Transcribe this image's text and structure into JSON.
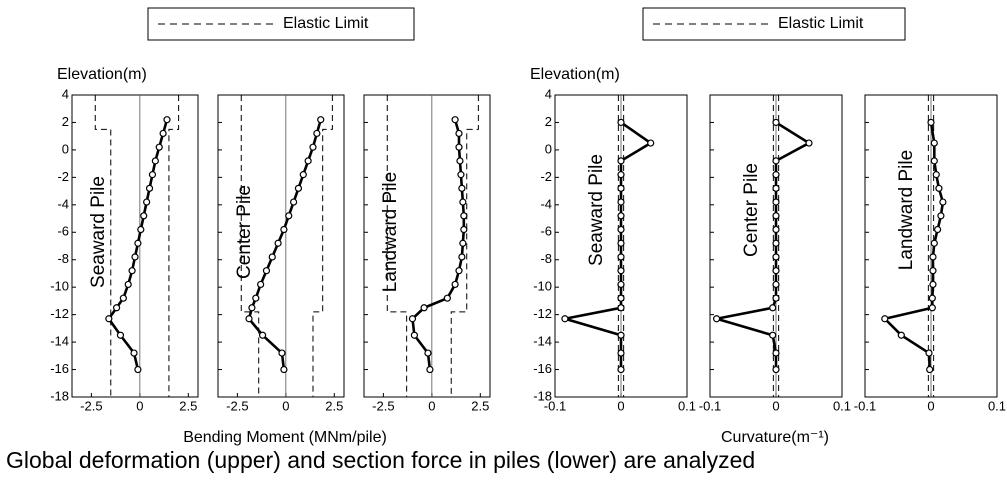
{
  "chart_data": [
    {
      "type": "line",
      "legend": "Elastic Limit",
      "y_label": "Elevation(m)",
      "x_label": "Bending Moment (MNm/pile)",
      "ylim": [
        -18,
        4
      ],
      "yticks": [
        -18,
        -16,
        -14,
        -12,
        -10,
        -8,
        -6,
        -4,
        -2,
        0,
        2,
        4
      ],
      "xlim": [
        -3.5,
        3
      ],
      "xticks": [
        -2.5,
        0,
        2.5
      ],
      "panels": [
        {
          "name": "Seaward Pile",
          "elevation": [
            2.2,
            1.2,
            0.2,
            -0.8,
            -1.8,
            -2.8,
            -3.8,
            -4.8,
            -5.8,
            -6.8,
            -7.8,
            -8.8,
            -9.8,
            -10.8,
            -11.5,
            -12.3,
            -13.5,
            -14.8,
            -16
          ],
          "values": [
            1.4,
            1.2,
            1.0,
            0.8,
            0.65,
            0.5,
            0.35,
            0.2,
            0.05,
            -0.1,
            -0.25,
            -0.4,
            -0.6,
            -0.85,
            -1.2,
            -1.6,
            -1.0,
            -0.3,
            -0.1
          ],
          "limit": {
            "elevation": [
              4,
              1.5,
              1.5,
              -18
            ],
            "lower": [
              -2.3,
              -2.3,
              -1.5,
              -1.5
            ],
            "upper": [
              2.0,
              2.0,
              1.5,
              1.5
            ]
          }
        },
        {
          "name": "Center Pile",
          "elevation": [
            2.2,
            1.2,
            0.2,
            -0.8,
            -1.8,
            -2.8,
            -3.8,
            -4.8,
            -5.8,
            -6.8,
            -7.8,
            -8.8,
            -9.8,
            -10.8,
            -11.5,
            -12.3,
            -13.5,
            -14.8,
            -16
          ],
          "values": [
            1.8,
            1.6,
            1.4,
            1.15,
            0.9,
            0.65,
            0.4,
            0.15,
            -0.1,
            -0.4,
            -0.7,
            -1.0,
            -1.3,
            -1.55,
            -1.75,
            -1.9,
            -1.2,
            -0.2,
            -0.1
          ],
          "limit": {
            "elevation": [
              4,
              1.5,
              1.5,
              -11.8,
              -11.8,
              -18
            ],
            "lower": [
              -2.3,
              -2.3,
              -2.3,
              -2.3,
              -1.4,
              -1.4
            ],
            "upper": [
              2.4,
              2.4,
              1.9,
              1.9,
              1.4,
              1.4
            ]
          }
        },
        {
          "name": "Landward Pile",
          "elevation": [
            2.2,
            1.2,
            0.2,
            -0.8,
            -1.8,
            -2.8,
            -3.8,
            -4.8,
            -5.8,
            -6.8,
            -7.8,
            -8.8,
            -9.8,
            -10.8,
            -11.5,
            -12.3,
            -13.5,
            -14.8,
            -16
          ],
          "values": [
            1.2,
            1.4,
            1.4,
            1.45,
            1.5,
            1.55,
            1.6,
            1.65,
            1.65,
            1.6,
            1.55,
            1.4,
            1.2,
            0.8,
            -0.4,
            -1.0,
            -0.9,
            -0.2,
            -0.1
          ],
          "limit": {
            "elevation": [
              4,
              1.5,
              1.5,
              -11.8,
              -11.8,
              -18
            ],
            "lower": [
              -2.3,
              -2.3,
              -2.3,
              -2.3,
              -1.3,
              -1.3
            ],
            "upper": [
              2.4,
              2.4,
              1.8,
              1.8,
              1.0,
              1.0
            ]
          }
        }
      ]
    },
    {
      "type": "line",
      "legend": "Elastic Limit",
      "y_label": "Elevation(m)",
      "x_label": "Curvature(m⁻¹)",
      "ylim": [
        -18,
        4
      ],
      "yticks": [
        -18,
        -16,
        -14,
        -12,
        -10,
        -8,
        -6,
        -4,
        -2,
        0,
        2,
        4
      ],
      "xlim": [
        -0.1,
        0.1
      ],
      "xticks": [
        -0.1,
        0,
        0.1
      ],
      "panels": [
        {
          "name": "Seaward Pile",
          "elevation": [
            2.0,
            0.5,
            -0.8,
            -1.8,
            -2.8,
            -3.8,
            -4.8,
            -5.8,
            -6.8,
            -7.8,
            -8.8,
            -9.8,
            -10.8,
            -11.5,
            -12.3,
            -13.5,
            -14.8,
            -16
          ],
          "values": [
            0,
            0.045,
            0,
            0,
            0,
            0,
            0,
            0,
            0,
            0,
            0,
            0,
            0,
            0,
            -0.085,
            0,
            0,
            0
          ],
          "limit": {
            "elevation": [
              4,
              -18
            ],
            "lower": [
              -0.004,
              -0.004
            ],
            "upper": [
              0.004,
              0.004
            ]
          }
        },
        {
          "name": "Center Pile",
          "elevation": [
            2.0,
            0.5,
            -0.8,
            -1.8,
            -2.8,
            -3.8,
            -4.8,
            -5.8,
            -6.8,
            -7.8,
            -8.8,
            -9.8,
            -10.8,
            -11.5,
            -12.3,
            -13.5,
            -14.8,
            -16
          ],
          "values": [
            0,
            0.05,
            0,
            0,
            0,
            0,
            0,
            0,
            0,
            0,
            0,
            0,
            0,
            -0.005,
            -0.09,
            -0.005,
            0,
            0
          ],
          "limit": {
            "elevation": [
              4,
              -18
            ],
            "lower": [
              -0.004,
              -0.004
            ],
            "upper": [
              0.004,
              0.004
            ]
          }
        },
        {
          "name": "Landward Pile",
          "elevation": [
            2.0,
            0.5,
            -0.8,
            -1.8,
            -2.8,
            -3.8,
            -4.8,
            -5.8,
            -6.8,
            -7.8,
            -8.8,
            -9.8,
            -10.8,
            -11.5,
            -12.3,
            -13.5,
            -14.8,
            -16
          ],
          "values": [
            0,
            0.005,
            0.005,
            0.008,
            0.012,
            0.018,
            0.015,
            0.01,
            0.005,
            0.003,
            0.003,
            0.003,
            0.002,
            0.002,
            -0.07,
            -0.045,
            -0.003,
            -0.002
          ],
          "limit": {
            "elevation": [
              4,
              -18
            ],
            "lower": [
              -0.004,
              -0.004
            ],
            "upper": [
              0.004,
              0.004
            ]
          }
        }
      ]
    }
  ],
  "caption": "Global deformation (upper) and section force in piles (lower) are analyzed"
}
